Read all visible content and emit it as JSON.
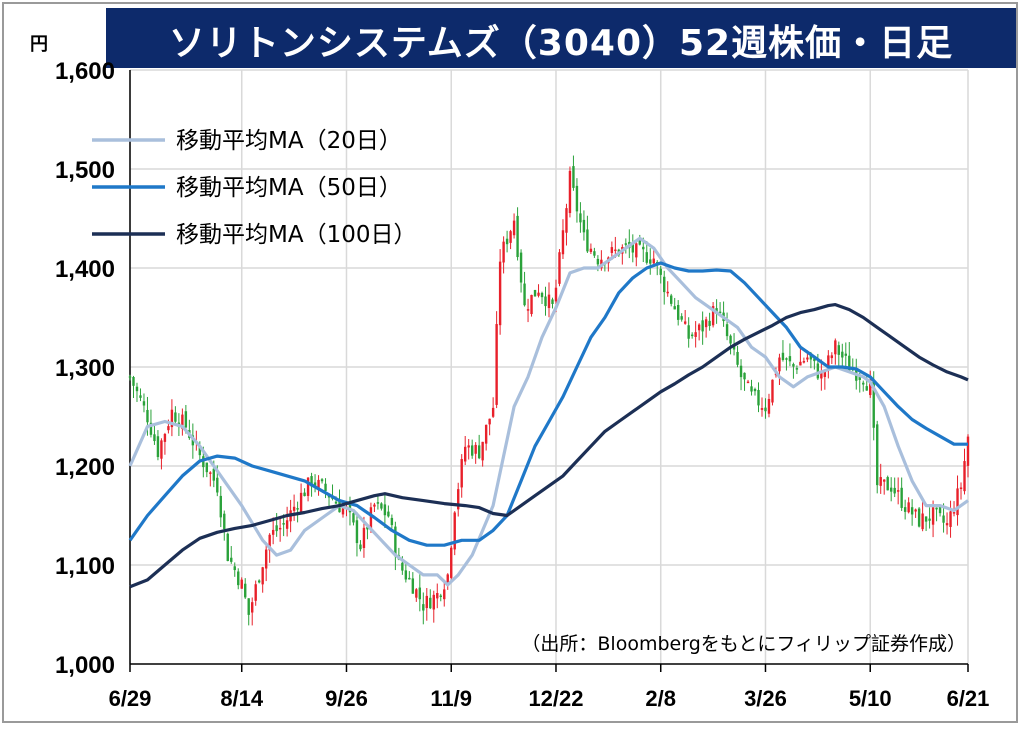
{
  "title": "ソリトンシステムズ（3040）52週株価・日足",
  "unit": "円",
  "source_note": "（出所：Bloombergをもとにフィリップ証券作成）",
  "colors": {
    "up": "#e8202a",
    "down": "#2aa23a",
    "ma20": "#a9bfdc",
    "ma50": "#1f78c8",
    "ma100": "#1c2f55",
    "title_bg": "#0d2a6b",
    "grid": "#d9d9d9"
  },
  "chart_data": {
    "type": "candlestick",
    "ylim": [
      1000,
      1600
    ],
    "yticks": [
      "1,000",
      "1,100",
      "1,200",
      "1,300",
      "1,400",
      "1,500",
      "1,600"
    ],
    "ytick_values": [
      1000,
      1100,
      1200,
      1300,
      1400,
      1500,
      1600
    ],
    "x_labels": [
      "6/29",
      "8/14",
      "9/26",
      "11/9",
      "12/22",
      "2/8",
      "3/26",
      "5/10",
      "6/21"
    ],
    "x_label_index": [
      0,
      32,
      62,
      92,
      122,
      152,
      182,
      212,
      240
    ],
    "num_days": 241,
    "close_anchors": [
      [
        0,
        1290
      ],
      [
        5,
        1250
      ],
      [
        8,
        1215
      ],
      [
        12,
        1255
      ],
      [
        16,
        1240
      ],
      [
        20,
        1210
      ],
      [
        25,
        1180
      ],
      [
        28,
        1110
      ],
      [
        32,
        1080
      ],
      [
        34,
        1050
      ],
      [
        37,
        1090
      ],
      [
        40,
        1130
      ],
      [
        44,
        1140
      ],
      [
        48,
        1165
      ],
      [
        52,
        1185
      ],
      [
        56,
        1175
      ],
      [
        60,
        1160
      ],
      [
        62,
        1155
      ],
      [
        66,
        1120
      ],
      [
        70,
        1160
      ],
      [
        74,
        1150
      ],
      [
        77,
        1100
      ],
      [
        81,
        1080
      ],
      [
        84,
        1060
      ],
      [
        88,
        1070
      ],
      [
        91,
        1090
      ],
      [
        93,
        1160
      ],
      [
        96,
        1220
      ],
      [
        100,
        1215
      ],
      [
        104,
        1260
      ],
      [
        106,
        1410
      ],
      [
        110,
        1450
      ],
      [
        113,
        1360
      ],
      [
        117,
        1380
      ],
      [
        121,
        1360
      ],
      [
        122,
        1380
      ],
      [
        126,
        1490
      ],
      [
        130,
        1430
      ],
      [
        134,
        1410
      ],
      [
        138,
        1415
      ],
      [
        142,
        1420
      ],
      [
        146,
        1415
      ],
      [
        150,
        1410
      ],
      [
        152,
        1390
      ],
      [
        156,
        1360
      ],
      [
        160,
        1330
      ],
      [
        164,
        1340
      ],
      [
        168,
        1360
      ],
      [
        172,
        1320
      ],
      [
        175,
        1290
      ],
      [
        178,
        1270
      ],
      [
        182,
        1260
      ],
      [
        186,
        1310
      ],
      [
        190,
        1300
      ],
      [
        194,
        1310
      ],
      [
        198,
        1290
      ],
      [
        202,
        1320
      ],
      [
        206,
        1300
      ],
      [
        210,
        1290
      ],
      [
        212,
        1280
      ],
      [
        214,
        1180
      ],
      [
        218,
        1180
      ],
      [
        222,
        1160
      ],
      [
        226,
        1145
      ],
      [
        230,
        1150
      ],
      [
        234,
        1140
      ],
      [
        238,
        1180
      ],
      [
        240,
        1230
      ]
    ],
    "series": [
      {
        "name": "移動平均MA（20日）",
        "color": "#a9bfdc",
        "points": [
          [
            0,
            1200
          ],
          [
            5,
            1240
          ],
          [
            10,
            1245
          ],
          [
            15,
            1240
          ],
          [
            20,
            1220
          ],
          [
            25,
            1195
          ],
          [
            32,
            1160
          ],
          [
            38,
            1125
          ],
          [
            42,
            1110
          ],
          [
            46,
            1115
          ],
          [
            50,
            1135
          ],
          [
            56,
            1150
          ],
          [
            60,
            1160
          ],
          [
            64,
            1155
          ],
          [
            68,
            1140
          ],
          [
            72,
            1125
          ],
          [
            76,
            1110
          ],
          [
            80,
            1100
          ],
          [
            84,
            1090
          ],
          [
            88,
            1090
          ],
          [
            91,
            1080
          ],
          [
            94,
            1090
          ],
          [
            98,
            1110
          ],
          [
            104,
            1160
          ],
          [
            110,
            1260
          ],
          [
            114,
            1290
          ],
          [
            118,
            1330
          ],
          [
            122,
            1360
          ],
          [
            126,
            1395
          ],
          [
            130,
            1400
          ],
          [
            134,
            1400
          ],
          [
            138,
            1410
          ],
          [
            142,
            1420
          ],
          [
            146,
            1430
          ],
          [
            150,
            1420
          ],
          [
            154,
            1400
          ],
          [
            158,
            1385
          ],
          [
            162,
            1370
          ],
          [
            166,
            1360
          ],
          [
            170,
            1350
          ],
          [
            174,
            1340
          ],
          [
            178,
            1320
          ],
          [
            182,
            1310
          ],
          [
            186,
            1290
          ],
          [
            190,
            1280
          ],
          [
            194,
            1290
          ],
          [
            198,
            1295
          ],
          [
            202,
            1300
          ],
          [
            206,
            1295
          ],
          [
            210,
            1290
          ],
          [
            212,
            1285
          ],
          [
            216,
            1260
          ],
          [
            220,
            1220
          ],
          [
            224,
            1185
          ],
          [
            228,
            1160
          ],
          [
            232,
            1160
          ],
          [
            236,
            1155
          ],
          [
            240,
            1165
          ]
        ]
      },
      {
        "name": "移動平均MA（50日）",
        "color": "#1f78c8",
        "points": [
          [
            0,
            1125
          ],
          [
            5,
            1150
          ],
          [
            10,
            1170
          ],
          [
            15,
            1190
          ],
          [
            20,
            1205
          ],
          [
            25,
            1210
          ],
          [
            30,
            1208
          ],
          [
            35,
            1200
          ],
          [
            40,
            1195
          ],
          [
            45,
            1190
          ],
          [
            50,
            1185
          ],
          [
            55,
            1175
          ],
          [
            60,
            1165
          ],
          [
            65,
            1160
          ],
          [
            70,
            1148
          ],
          [
            75,
            1135
          ],
          [
            80,
            1125
          ],
          [
            85,
            1120
          ],
          [
            90,
            1120
          ],
          [
            95,
            1125
          ],
          [
            100,
            1125
          ],
          [
            104,
            1135
          ],
          [
            108,
            1150
          ],
          [
            112,
            1185
          ],
          [
            116,
            1220
          ],
          [
            120,
            1245
          ],
          [
            124,
            1270
          ],
          [
            128,
            1300
          ],
          [
            132,
            1330
          ],
          [
            136,
            1350
          ],
          [
            140,
            1375
          ],
          [
            144,
            1390
          ],
          [
            148,
            1400
          ],
          [
            152,
            1405
          ],
          [
            156,
            1400
          ],
          [
            160,
            1397
          ],
          [
            164,
            1397
          ],
          [
            168,
            1398
          ],
          [
            172,
            1397
          ],
          [
            176,
            1385
          ],
          [
            180,
            1370
          ],
          [
            184,
            1355
          ],
          [
            188,
            1340
          ],
          [
            192,
            1320
          ],
          [
            196,
            1310
          ],
          [
            200,
            1300
          ],
          [
            204,
            1300
          ],
          [
            208,
            1298
          ],
          [
            212,
            1290
          ],
          [
            216,
            1275
          ],
          [
            220,
            1260
          ],
          [
            224,
            1247
          ],
          [
            228,
            1238
          ],
          [
            232,
            1230
          ],
          [
            236,
            1222
          ],
          [
            240,
            1222
          ]
        ]
      },
      {
        "name": "移動平均MA（100日）",
        "color": "#1c2f55",
        "points": [
          [
            0,
            1078
          ],
          [
            5,
            1085
          ],
          [
            10,
            1100
          ],
          [
            15,
            1115
          ],
          [
            20,
            1127
          ],
          [
            25,
            1133
          ],
          [
            30,
            1137
          ],
          [
            35,
            1140
          ],
          [
            40,
            1145
          ],
          [
            45,
            1150
          ],
          [
            50,
            1153
          ],
          [
            55,
            1157
          ],
          [
            60,
            1160
          ],
          [
            65,
            1165
          ],
          [
            70,
            1170
          ],
          [
            73,
            1172
          ],
          [
            78,
            1168
          ],
          [
            84,
            1165
          ],
          [
            90,
            1162
          ],
          [
            96,
            1160
          ],
          [
            100,
            1158
          ],
          [
            104,
            1152
          ],
          [
            108,
            1150
          ],
          [
            112,
            1160
          ],
          [
            116,
            1170
          ],
          [
            120,
            1180
          ],
          [
            124,
            1190
          ],
          [
            128,
            1205
          ],
          [
            132,
            1220
          ],
          [
            136,
            1235
          ],
          [
            140,
            1245
          ],
          [
            144,
            1255
          ],
          [
            148,
            1265
          ],
          [
            152,
            1275
          ],
          [
            156,
            1283
          ],
          [
            160,
            1292
          ],
          [
            164,
            1300
          ],
          [
            168,
            1310
          ],
          [
            172,
            1320
          ],
          [
            176,
            1328
          ],
          [
            180,
            1335
          ],
          [
            184,
            1342
          ],
          [
            188,
            1350
          ],
          [
            192,
            1355
          ],
          [
            196,
            1358
          ],
          [
            200,
            1362
          ],
          [
            202,
            1363
          ],
          [
            206,
            1358
          ],
          [
            210,
            1350
          ],
          [
            214,
            1340
          ],
          [
            218,
            1330
          ],
          [
            222,
            1320
          ],
          [
            226,
            1310
          ],
          [
            230,
            1302
          ],
          [
            234,
            1295
          ],
          [
            238,
            1290
          ],
          [
            240,
            1287
          ]
        ]
      }
    ]
  }
}
